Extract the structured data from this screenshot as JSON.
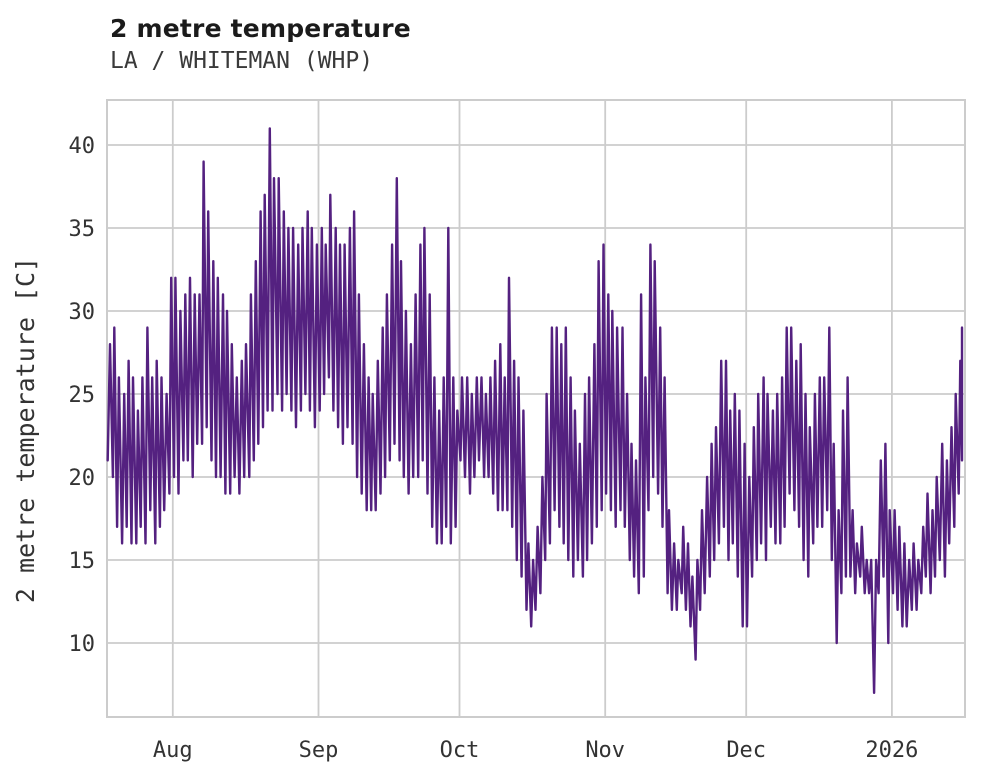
{
  "header": {
    "title": "2 metre temperature",
    "subtitle": "LA / WHITEMAN (WHP)"
  },
  "colors": {
    "line": "#542180",
    "grid": "#cccccc",
    "text": "#333333",
    "title": "#1b1b1b",
    "background": "#ffffff"
  },
  "chart_data": {
    "type": "line",
    "title": "2 metre temperature",
    "subtitle": "LA / WHITEMAN (WHP)",
    "xlabel": "",
    "ylabel": "2 metre temperature [C]",
    "grid": true,
    "legend": false,
    "y_ticks": [
      40,
      35,
      30,
      25,
      20,
      15,
      10
    ],
    "ylim": [
      5.5,
      42.7
    ],
    "x_tick_labels": [
      "Aug",
      "Sep",
      "Oct",
      "Nov",
      "Dec",
      "2026"
    ],
    "x_tick_day_indices": [
      14,
      45,
      75,
      106,
      136,
      167
    ],
    "series_name": "2 metre temperature [C]",
    "x_unit": "days, mid-July 2025 to mid-January 2026, diurnal min/max sawtooth",
    "daily_max": [
      28,
      29,
      26,
      25,
      27,
      26,
      24,
      26,
      29,
      26,
      27,
      26,
      25,
      32,
      32,
      30,
      31,
      32,
      31,
      31,
      39,
      36,
      33,
      32,
      31,
      30,
      28,
      26,
      27,
      28,
      31,
      33,
      36,
      37,
      41,
      38,
      38,
      36,
      35,
      35,
      34,
      35,
      36,
      35,
      34,
      35,
      34,
      37,
      35,
      34,
      34,
      35,
      36,
      31,
      28,
      26,
      25,
      27,
      29,
      31,
      34,
      38,
      33,
      30,
      28,
      31,
      34,
      35,
      31,
      26,
      24,
      26,
      35,
      26,
      24,
      26,
      26,
      25,
      26,
      26,
      25,
      26,
      27,
      28,
      26,
      32,
      27,
      26,
      24,
      16,
      15,
      17,
      20,
      25,
      29,
      29,
      28,
      29,
      26,
      24,
      22,
      25,
      26,
      28,
      33,
      34,
      31,
      30,
      29,
      29,
      25,
      22,
      21,
      31,
      26,
      34,
      33,
      29,
      26,
      18,
      16,
      15,
      17,
      16,
      14,
      15,
      18,
      20,
      22,
      23,
      27,
      27,
      24,
      25,
      24,
      22,
      20,
      23,
      25,
      26,
      25,
      24,
      25,
      26,
      29,
      29,
      27,
      28,
      25,
      23,
      25,
      26,
      26,
      29,
      22,
      18,
      24,
      26,
      18,
      16,
      17,
      15,
      15,
      15,
      21,
      22,
      18,
      18,
      17,
      16,
      15,
      16,
      15,
      17,
      19,
      18,
      20,
      22,
      21,
      23,
      25,
      27,
      29
    ],
    "daily_min": [
      21,
      20,
      17,
      16,
      17,
      16,
      16,
      17,
      16,
      18,
      16,
      17,
      18,
      19,
      20,
      19,
      21,
      21,
      20,
      22,
      22,
      23,
      21,
      20,
      20,
      19,
      19,
      20,
      19,
      20,
      20,
      21,
      22,
      23,
      24,
      24,
      25,
      24,
      25,
      24,
      23,
      24,
      25,
      24,
      23,
      24,
      25,
      26,
      24,
      23,
      22,
      23,
      22,
      20,
      19,
      18,
      18,
      18,
      19,
      20,
      21,
      22,
      21,
      20,
      19,
      20,
      20,
      21,
      19,
      17,
      16,
      16,
      17,
      16,
      17,
      21,
      20,
      19,
      20,
      21,
      20,
      20,
      19,
      18,
      18,
      18,
      17,
      15,
      14,
      12,
      11,
      12,
      13,
      15,
      16,
      18,
      17,
      16,
      15,
      14,
      15,
      14,
      15,
      16,
      17,
      18,
      19,
      18,
      17,
      18,
      17,
      15,
      14,
      13,
      14,
      18,
      20,
      19,
      17,
      13,
      12,
      12,
      13,
      12,
      11,
      9,
      12,
      13,
      14,
      15,
      16,
      17,
      15,
      16,
      14,
      11,
      11,
      14,
      15,
      16,
      15,
      17,
      16,
      16,
      17,
      19,
      18,
      17,
      15,
      14,
      16,
      17,
      17,
      18,
      15,
      10,
      13,
      14,
      14,
      13,
      14,
      13,
      13,
      7,
      13,
      14,
      10,
      13,
      12,
      11,
      11,
      12,
      12,
      13,
      14,
      13,
      14,
      15,
      14,
      16,
      17,
      19,
      21
    ]
  }
}
